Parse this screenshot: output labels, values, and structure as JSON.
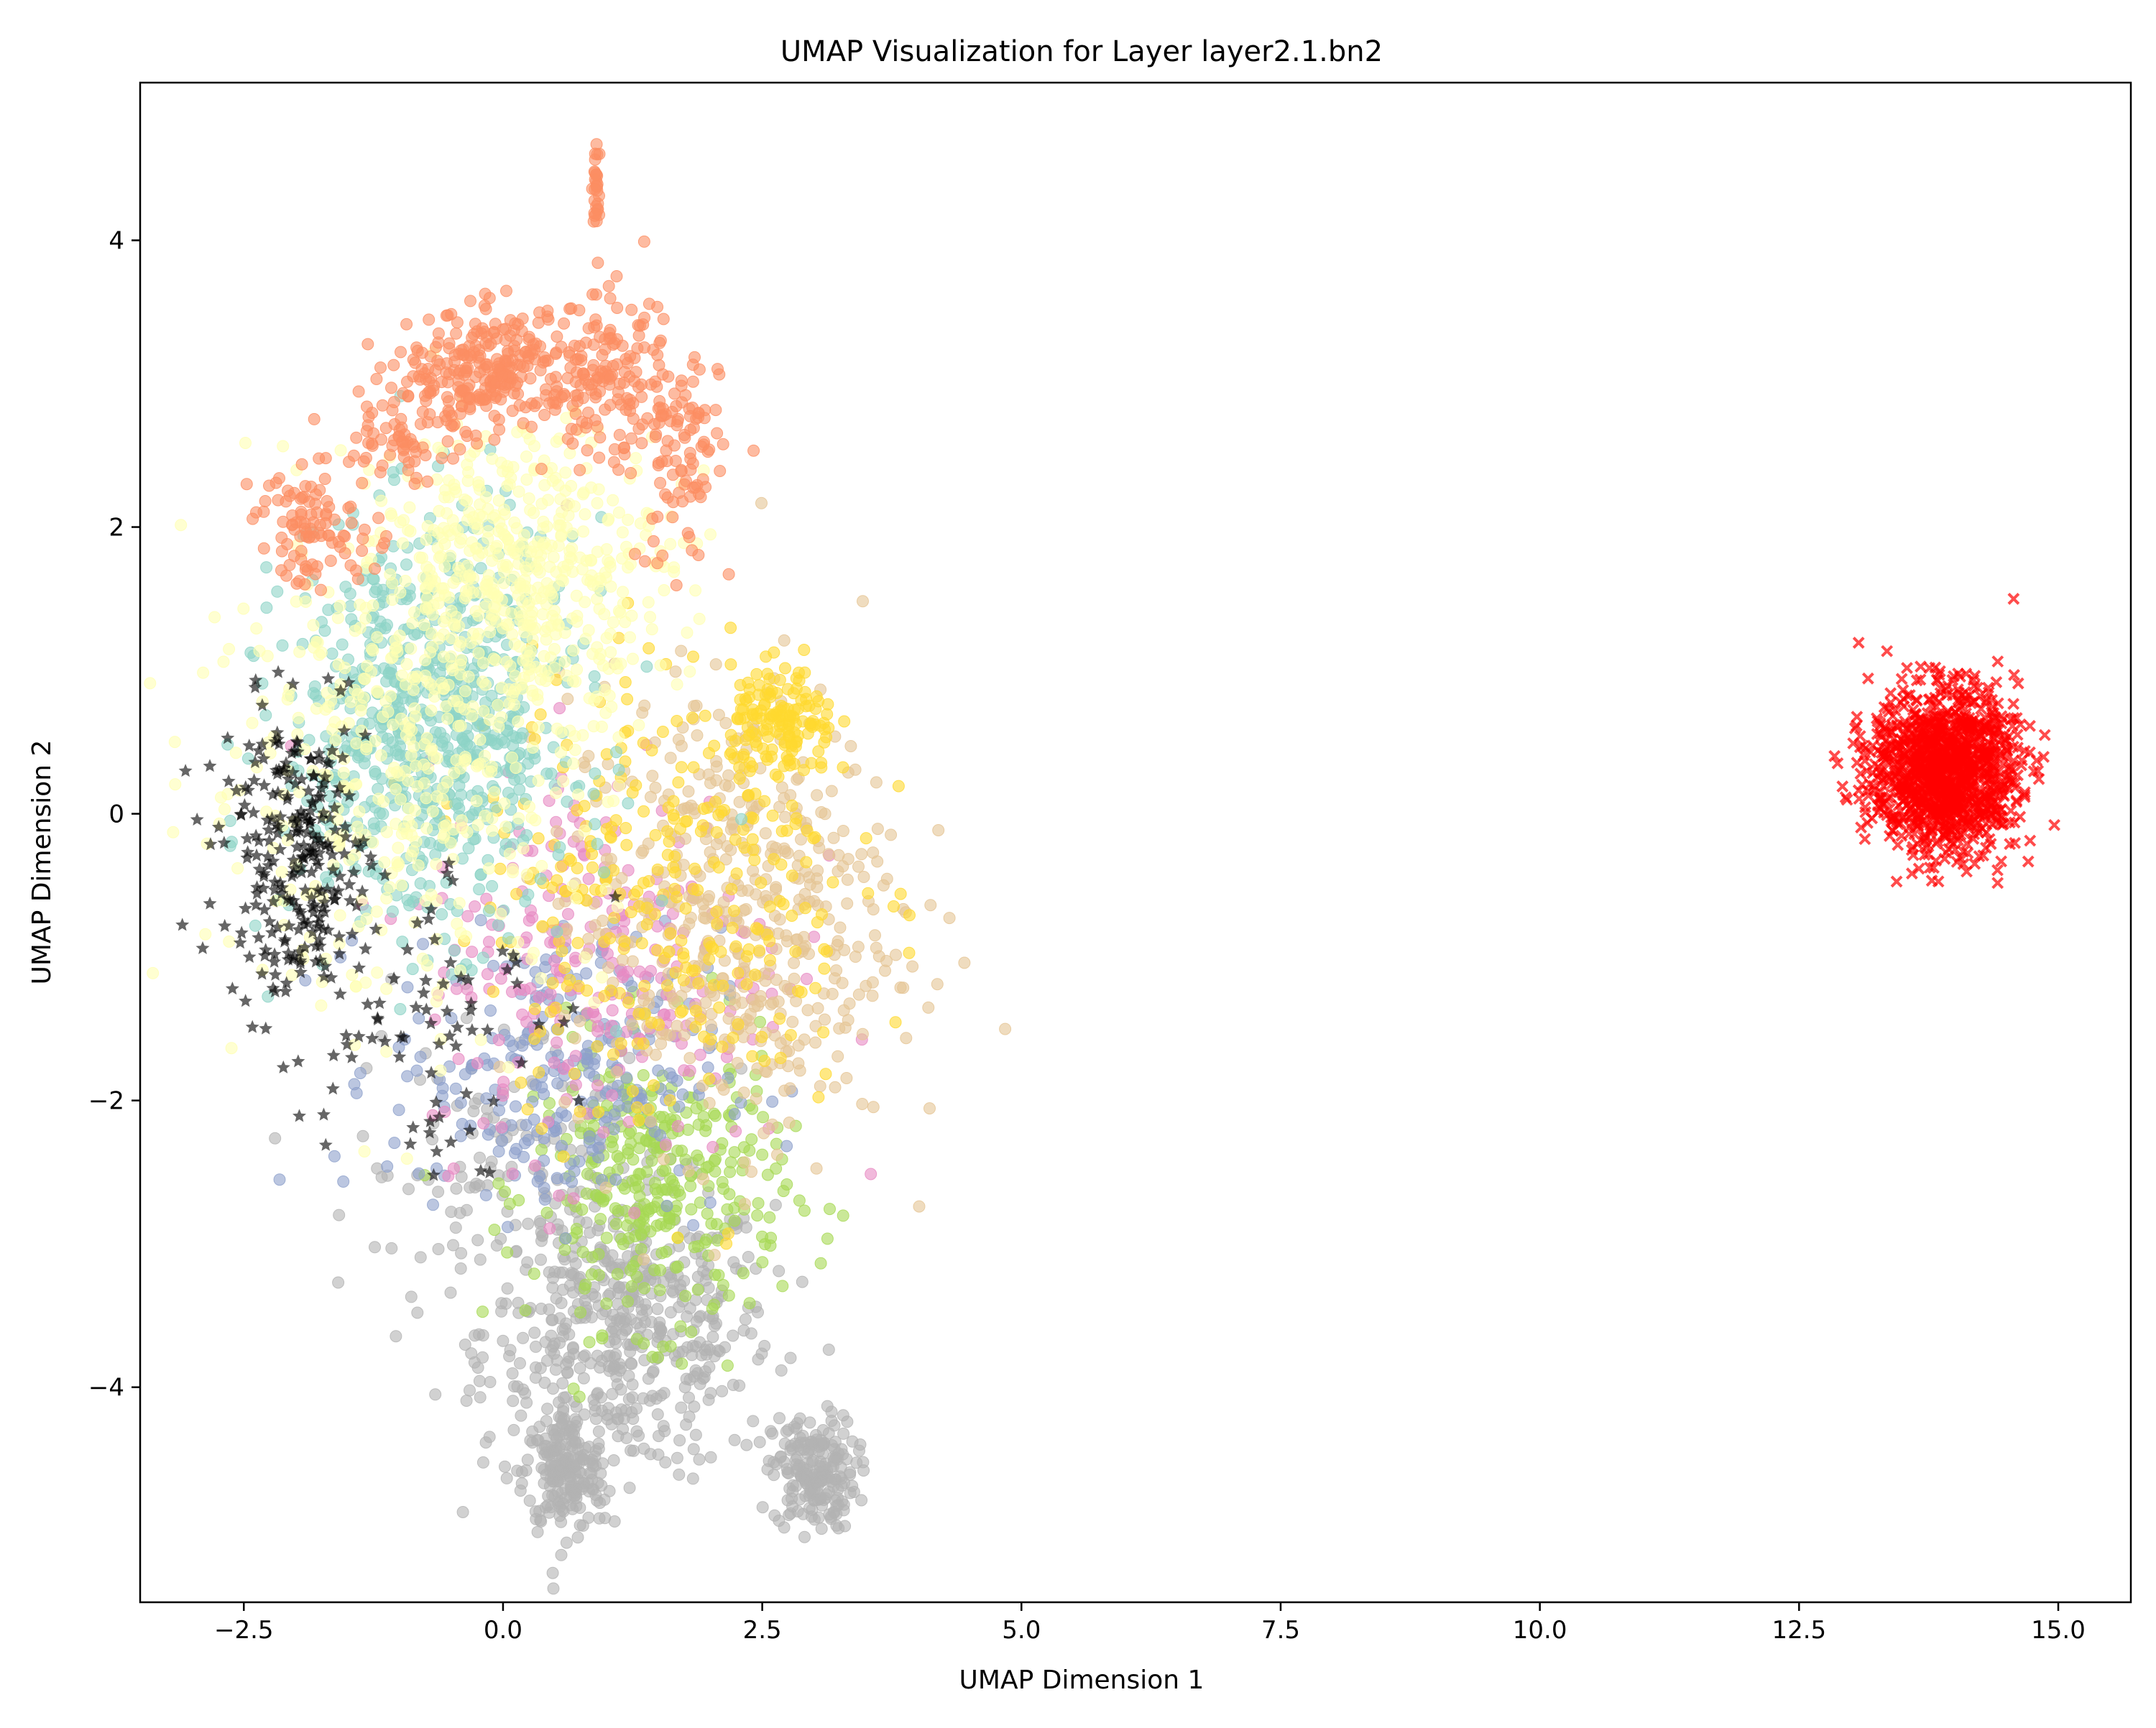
{
  "chart_data": {
    "type": "scatter",
    "title": "UMAP Visualization for Layer layer2.1.bn2",
    "xlabel": "UMAP Dimension 1",
    "ylabel": "UMAP Dimension 2",
    "xlim": [
      -3.5,
      15.7
    ],
    "ylim": [
      -5.5,
      5.1
    ],
    "x_ticks": [
      -2.5,
      0.0,
      2.5,
      5.0,
      7.5,
      10.0,
      12.5,
      15.0
    ],
    "x_tick_labels": [
      "−2.5",
      "0.0",
      "2.5",
      "5.0",
      "7.5",
      "10.0",
      "12.5",
      "15.0"
    ],
    "y_ticks": [
      -4,
      -2,
      0,
      2,
      4
    ],
    "y_tick_labels": [
      "−4",
      "−2",
      "0",
      "2",
      "4"
    ],
    "grid": false,
    "legend": "none",
    "series": [
      {
        "color": "#b3b3b3",
        "marker": "circle",
        "clusters": [
          [
            1.2,
            -3.6,
            0.7,
            0.5,
            500
          ],
          [
            0.6,
            -4.6,
            0.2,
            0.2,
            200
          ],
          [
            3.0,
            -4.6,
            0.2,
            0.2,
            200
          ],
          [
            0.2,
            -2.5,
            0.8,
            0.6,
            150
          ]
        ]
      },
      {
        "color": "#a6d854",
        "marker": "circle",
        "clusters": [
          [
            1.5,
            -2.6,
            0.6,
            0.5,
            350
          ]
        ]
      },
      {
        "color": "#8da0cb",
        "marker": "circle",
        "clusters": [
          [
            0.5,
            -1.8,
            0.8,
            0.5,
            250
          ]
        ]
      },
      {
        "color": "#e78ac3",
        "marker": "circle",
        "clusters": [
          [
            1.0,
            -1.0,
            0.9,
            0.7,
            250
          ]
        ]
      },
      {
        "color": "#e5c494",
        "marker": "circle",
        "clusters": [
          [
            2.2,
            -0.7,
            0.8,
            0.8,
            500
          ]
        ]
      },
      {
        "color": "#ffd92f",
        "marker": "circle",
        "clusters": [
          [
            1.6,
            -0.5,
            0.9,
            0.8,
            300
          ],
          [
            2.7,
            0.6,
            0.25,
            0.2,
            150
          ]
        ]
      },
      {
        "color": "#8dd3c7",
        "marker": "circle",
        "clusters": [
          [
            -0.7,
            0.6,
            0.7,
            0.7,
            700
          ]
        ]
      },
      {
        "color": "#ffffb3",
        "marker": "circle",
        "clusters": [
          [
            0.2,
            1.7,
            0.7,
            0.5,
            500
          ],
          [
            -1.0,
            0.3,
            1.0,
            0.8,
            400
          ]
        ]
      },
      {
        "color": "#fc8d62",
        "marker": "circle",
        "clusters": [
          [
            -0.1,
            3.1,
            0.4,
            0.2,
            250
          ],
          [
            1.0,
            3.0,
            0.3,
            0.3,
            150
          ],
          [
            1.7,
            2.5,
            0.2,
            0.4,
            100
          ],
          [
            -1.8,
            2.0,
            0.3,
            0.2,
            100
          ],
          [
            -0.9,
            2.7,
            0.3,
            0.2,
            80
          ],
          [
            0.9,
            4.35,
            0.02,
            0.15,
            30
          ]
        ]
      },
      {
        "color": "#000000",
        "marker": "star",
        "clusters": [
          [
            -2.0,
            -0.3,
            0.35,
            0.5,
            250
          ],
          [
            -0.9,
            -1.3,
            0.6,
            0.6,
            80
          ]
        ]
      },
      {
        "color": "#ff0000",
        "marker": "x",
        "clusters": [
          [
            13.9,
            0.3,
            0.35,
            0.28,
            1200
          ]
        ]
      }
    ]
  }
}
